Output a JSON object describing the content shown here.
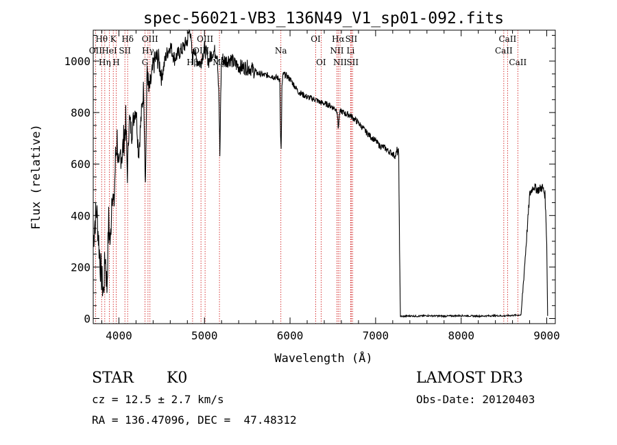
{
  "chart_data": {
    "type": "line",
    "title": "spec-56021-VB3_136N49_V1_sp01-092.fits",
    "xlabel": "Wavelength (Å)",
    "ylabel": "Flux (relative)",
    "xlim": [
      3700,
      9100
    ],
    "ylim": [
      -20,
      1120
    ],
    "x_ticks": [
      4000,
      5000,
      6000,
      7000,
      8000,
      9000
    ],
    "x_tick_labels": [
      "4000",
      "5000",
      "6000",
      "7000",
      "8000",
      "9000"
    ],
    "y_ticks": [
      0,
      200,
      400,
      600,
      800,
      1000
    ],
    "y_tick_labels": [
      "0",
      "200",
      "400",
      "600",
      "800",
      "1000"
    ],
    "series": [
      {
        "name": "flux",
        "x": [
          3700,
          3720,
          3740,
          3760,
          3780,
          3800,
          3820,
          3840,
          3860,
          3880,
          3900,
          3920,
          3940,
          3960,
          3980,
          4000,
          4020,
          4040,
          4060,
          4080,
          4100,
          4120,
          4150,
          4180,
          4200,
          4230,
          4260,
          4290,
          4310,
          4330,
          4350,
          4380,
          4400,
          4430,
          4460,
          4500,
          4550,
          4600,
          4650,
          4700,
          4750,
          4800,
          4830,
          4860,
          4880,
          4900,
          4950,
          5000,
          5050,
          5100,
          5150,
          5170,
          5180,
          5190,
          5200,
          5250,
          5300,
          5350,
          5400,
          5450,
          5500,
          5550,
          5600,
          5650,
          5700,
          5750,
          5800,
          5850,
          5880,
          5890,
          5896,
          5905,
          5920,
          5950,
          6000,
          6050,
          6100,
          6150,
          6200,
          6250,
          6300,
          6350,
          6400,
          6450,
          6500,
          6550,
          6563,
          6580,
          6600,
          6650,
          6700,
          6750,
          6800,
          6850,
          6900,
          6950,
          7000,
          7050,
          7100,
          7150,
          7200,
          7230,
          7250,
          7270,
          7280,
          7290,
          7300,
          7400,
          7500,
          7600,
          7700,
          7800,
          7900,
          8000,
          8100,
          8200,
          8300,
          8400,
          8500,
          8600,
          8700,
          8800,
          8830,
          8850,
          8870,
          8900,
          8950,
          8980,
          9000,
          9010
        ],
        "values": [
          300,
          380,
          420,
          320,
          220,
          150,
          100,
          250,
          120,
          380,
          280,
          520,
          420,
          620,
          700,
          540,
          650,
          640,
          700,
          760,
          560,
          780,
          720,
          800,
          820,
          640,
          780,
          900,
          520,
          980,
          880,
          930,
          980,
          1010,
          1010,
          940,
          1020,
          1060,
          1010,
          1030,
          1050,
          1080,
          1130,
          1000,
          1060,
          1010,
          990,
          1050,
          1000,
          1040,
          1030,
          840,
          620,
          880,
          1010,
          1000,
          1010,
          990,
          980,
          975,
          975,
          970,
          955,
          950,
          945,
          945,
          940,
          935,
          930,
          700,
          650,
          900,
          950,
          945,
          930,
          905,
          880,
          870,
          860,
          855,
          850,
          840,
          835,
          830,
          820,
          810,
          740,
          800,
          805,
          795,
          790,
          775,
          760,
          740,
          720,
          705,
          690,
          670,
          665,
          650,
          640,
          630,
          650,
          640,
          250,
          10,
          8,
          10,
          9,
          11,
          10,
          9,
          10,
          11,
          10,
          9,
          10,
          11,
          10,
          12,
          14,
          480,
          505,
          515,
          505,
          500,
          510,
          480,
          300,
          10
        ]
      }
    ],
    "spectral_lines": [
      {
        "label": "Hθ",
        "wavelength": 3798,
        "row": 0
      },
      {
        "label": "OII",
        "wavelength": 3727,
        "row": 1
      },
      {
        "label": "Hη",
        "wavelength": 3835,
        "row": 2
      },
      {
        "label": "K",
        "wavelength": 3934,
        "row": 0
      },
      {
        "label": "HeI",
        "wavelength": 3889,
        "row": 1
      },
      {
        "label": "H",
        "wavelength": 3968,
        "row": 2
      },
      {
        "label": "Hδ",
        "wavelength": 4102,
        "row": 0
      },
      {
        "label": "SII",
        "wavelength": 4070,
        "row": 1
      },
      {
        "label": "OIII",
        "wavelength": 4363,
        "row": 0
      },
      {
        "label": "Hγ",
        "wavelength": 4340,
        "row": 1
      },
      {
        "label": "G",
        "wavelength": 4305,
        "row": 2
      },
      {
        "label": "OIII",
        "wavelength": 5007,
        "row": 0
      },
      {
        "label": "OIII",
        "wavelength": 4959,
        "row": 1
      },
      {
        "label": "Hβ",
        "wavelength": 4861,
        "row": 2
      },
      {
        "label": "Mg",
        "wavelength": 5175,
        "row": 2
      },
      {
        "label": "Na",
        "wavelength": 5893,
        "row": 1
      },
      {
        "label": "OI",
        "wavelength": 6300,
        "row": 0
      },
      {
        "label": "OI",
        "wavelength": 6363,
        "row": 2
      },
      {
        "label": "Hα",
        "wavelength": 6563,
        "row": 0
      },
      {
        "label": "SII",
        "wavelength": 6716,
        "row": 0
      },
      {
        "label": "NII",
        "wavelength": 6548,
        "row": 1
      },
      {
        "label": "Li",
        "wavelength": 6708,
        "row": 1
      },
      {
        "label": "NII",
        "wavelength": 6584,
        "row": 2
      },
      {
        "label": "SII",
        "wavelength": 6731,
        "row": 2
      },
      {
        "label": "CaII",
        "wavelength": 8542,
        "row": 0
      },
      {
        "label": "CaII",
        "wavelength": 8498,
        "row": 1
      },
      {
        "label": "CaII",
        "wavelength": 8662,
        "row": 2
      }
    ],
    "line_color": "#000000",
    "marker_color": "#cc0000"
  },
  "info": {
    "object_class": "STAR",
    "subclass": "K0",
    "survey": "LAMOST DR3",
    "redshift": "cz = 12.5 ± 2.7 km/s",
    "obs_date": "Obs-Date: 20120403",
    "coords": "RA = 136.47096, DEC =  47.48312"
  }
}
